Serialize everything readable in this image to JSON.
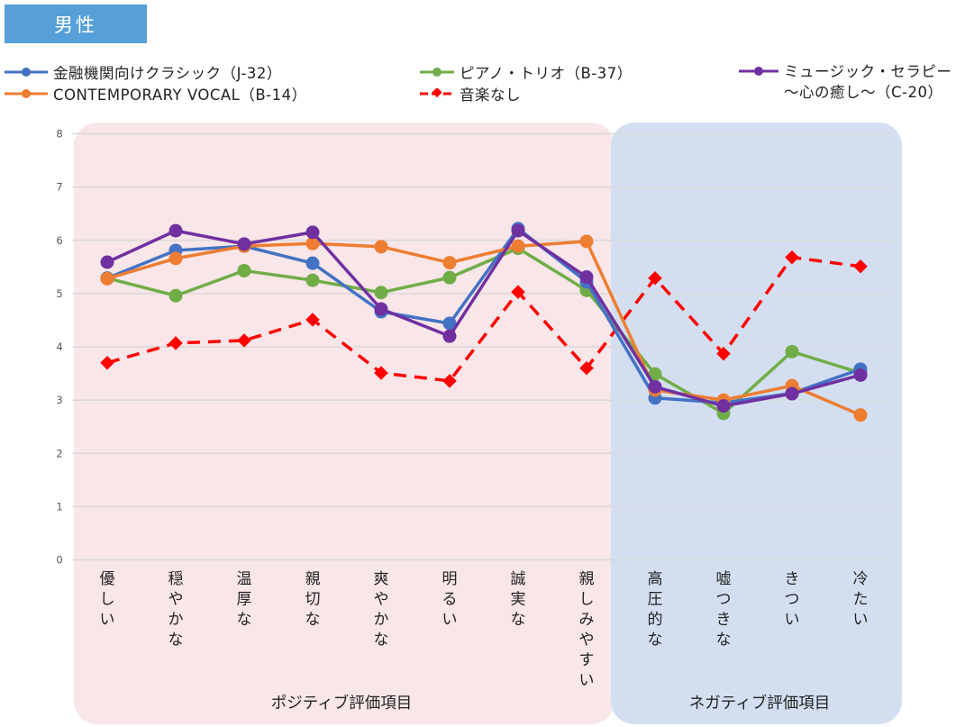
{
  "header": {
    "title": "男性"
  },
  "chart_data": {
    "type": "line",
    "title": "男性",
    "xlabel": "",
    "ylabel": "",
    "ylim": [
      0,
      8
    ],
    "yticks": [
      0,
      1,
      2,
      3,
      4,
      5,
      6,
      7,
      8
    ],
    "grid": true,
    "legend_position": "top",
    "categories": [
      "優しい",
      "穏やかな",
      "温厚な",
      "親切な",
      "爽やかな",
      "明るい",
      "誠実な",
      "親しみやすい",
      "高圧的な",
      "嘘つきな",
      "きつい",
      "冷たい"
    ],
    "groups": [
      {
        "label": "ポジティブ評価項目",
        "from": 0,
        "to": 7,
        "color": "#f8e6e8"
      },
      {
        "label": "ネガティブ評価項目",
        "from": 8,
        "to": 11,
        "color": "#d3dff1"
      }
    ],
    "series": [
      {
        "name": "金融機関向けクラシック（J-32）",
        "legend_line2": "",
        "color": "#4472c4",
        "marker": "circle",
        "dashed": false,
        "values": [
          5.29,
          5.81,
          5.89,
          5.57,
          4.66,
          4.44,
          6.22,
          5.22,
          3.04,
          2.95,
          3.13,
          3.58
        ]
      },
      {
        "name": "CONTEMPORARY VOCAL（B-14）",
        "legend_line2": "",
        "color": "#ed7d31",
        "marker": "circle",
        "dashed": false,
        "values": [
          5.28,
          5.66,
          5.89,
          5.94,
          5.88,
          5.58,
          5.89,
          5.98,
          3.19,
          3.0,
          3.27,
          2.72
        ]
      },
      {
        "name": "ピアノ・トリオ（B-37）",
        "legend_line2": "",
        "color": "#70ad47",
        "marker": "circle",
        "dashed": false,
        "values": [
          5.29,
          4.96,
          5.43,
          5.25,
          5.02,
          5.3,
          5.85,
          5.06,
          3.49,
          2.75,
          3.91,
          3.51
        ]
      },
      {
        "name": "音楽なし",
        "legend_line2": "",
        "color": "#ff0000",
        "marker": "diamond",
        "dashed": true,
        "values": [
          3.7,
          4.07,
          4.12,
          4.51,
          3.51,
          3.36,
          5.03,
          3.6,
          5.29,
          3.87,
          5.68,
          5.51
        ]
      },
      {
        "name": "ミュージック・セラピー",
        "legend_line2": "～心の癒し～（C-20）",
        "color": "#7030a0",
        "marker": "circle",
        "dashed": false,
        "values": [
          5.59,
          6.18,
          5.93,
          6.15,
          4.71,
          4.2,
          6.18,
          5.31,
          3.25,
          2.89,
          3.12,
          3.47
        ]
      }
    ]
  }
}
